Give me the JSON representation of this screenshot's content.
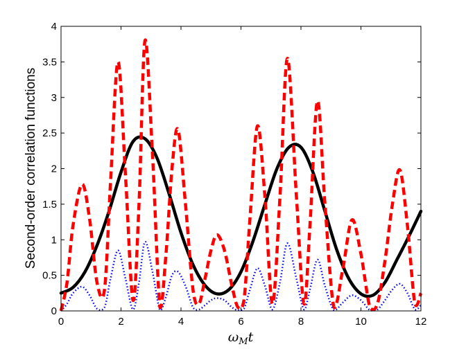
{
  "chart_data": {
    "type": "line",
    "xlabel": "ω_M t",
    "xlabel_main": "ω",
    "xlabel_sub": "M",
    "xlabel_tail": "t",
    "ylabel": "Second-order correlation functions",
    "xlim": [
      0,
      12
    ],
    "ylim": [
      0,
      4
    ],
    "xticks": [
      0,
      2,
      4,
      6,
      8,
      10,
      12
    ],
    "xtick_labels": [
      "0",
      "2",
      "4",
      "6",
      "8",
      "10",
      "12"
    ],
    "yticks": [
      0,
      0.5,
      1,
      1.5,
      2,
      2.5,
      3,
      3.5,
      4
    ],
    "ytick_labels": [
      "0",
      "0.5",
      "1",
      "1.5",
      "2",
      "2.5",
      "3",
      "3.5",
      "4"
    ],
    "grid": false,
    "series": [
      {
        "style": "solid",
        "color": "#000000",
        "x": [
          0,
          0.4,
          0.8,
          1.2,
          1.6,
          2.0,
          2.4,
          2.8,
          3.2,
          3.6,
          4.0,
          4.4,
          4.8,
          5.2,
          5.6,
          6.0,
          6.4,
          6.8,
          7.2,
          7.6,
          8.0,
          8.4,
          8.8,
          9.2,
          9.6,
          10.0,
          10.4,
          10.8,
          11.2,
          11.6,
          12.0
        ],
        "y": [
          0.25,
          0.33,
          0.55,
          0.92,
          1.4,
          1.95,
          2.38,
          2.42,
          2.15,
          1.65,
          1.1,
          0.65,
          0.36,
          0.24,
          0.3,
          0.55,
          0.98,
          1.5,
          2.0,
          2.3,
          2.3,
          1.95,
          1.4,
          0.85,
          0.45,
          0.24,
          0.22,
          0.4,
          0.72,
          1.05,
          1.4
        ]
      },
      {
        "style": "dashed",
        "color": "#ff0000",
        "x": [
          0.0,
          0.2,
          0.4,
          0.7,
          0.95,
          1.2,
          1.45,
          1.65,
          1.9,
          2.15,
          2.4,
          2.6,
          2.8,
          3.05,
          3.3,
          3.5,
          3.7,
          3.9,
          4.15,
          4.4,
          4.6,
          4.8,
          5.0,
          5.2,
          5.45,
          5.7,
          5.9,
          6.1,
          6.3,
          6.55,
          6.8,
          7.05,
          7.3,
          7.55,
          7.85,
          8.1,
          8.3,
          8.55,
          8.8,
          9.1,
          9.4,
          9.7,
          10.0,
          10.3,
          10.55,
          10.8,
          11.05,
          11.3,
          11.55,
          11.8,
          12.0
        ],
        "y": [
          0.0,
          0.4,
          1.2,
          1.78,
          1.3,
          0.4,
          0.3,
          1.8,
          3.5,
          1.9,
          0.15,
          1.5,
          3.8,
          2.2,
          0.05,
          0.8,
          2.0,
          2.55,
          1.5,
          0.3,
          0.1,
          0.45,
          0.85,
          1.07,
          0.85,
          0.35,
          0.05,
          0.15,
          1.3,
          2.6,
          1.6,
          0.1,
          1.6,
          3.55,
          1.6,
          0.1,
          1.2,
          2.95,
          1.5,
          0.05,
          0.6,
          1.28,
          0.8,
          0.05,
          0.1,
          0.7,
          1.5,
          1.98,
          1.2,
          0.1,
          0.25
        ]
      },
      {
        "style": "dotted",
        "color": "#0000ff",
        "x": [
          0.0,
          0.2,
          0.4,
          0.7,
          0.95,
          1.2,
          1.45,
          1.65,
          1.9,
          2.15,
          2.4,
          2.6,
          2.8,
          3.05,
          3.3,
          3.5,
          3.7,
          3.9,
          4.15,
          4.4,
          4.6,
          4.8,
          5.0,
          5.2,
          5.45,
          5.7,
          5.9,
          6.1,
          6.3,
          6.55,
          6.8,
          7.05,
          7.3,
          7.55,
          7.85,
          8.1,
          8.3,
          8.55,
          8.8,
          9.1,
          9.4,
          9.7,
          10.0,
          10.3,
          10.55,
          10.8,
          11.05,
          11.3,
          11.55,
          11.8,
          12.0
        ],
        "y": [
          0.0,
          0.1,
          0.25,
          0.34,
          0.22,
          0.03,
          0.05,
          0.45,
          0.85,
          0.45,
          0.02,
          0.4,
          0.97,
          0.55,
          0.01,
          0.2,
          0.5,
          0.55,
          0.35,
          0.05,
          0.02,
          0.08,
          0.15,
          0.18,
          0.15,
          0.05,
          0.01,
          0.03,
          0.3,
          0.6,
          0.35,
          0.02,
          0.4,
          0.95,
          0.45,
          0.02,
          0.3,
          0.72,
          0.35,
          0.01,
          0.12,
          0.22,
          0.15,
          0.01,
          0.02,
          0.15,
          0.3,
          0.38,
          0.25,
          0.02,
          0.08
        ]
      }
    ]
  }
}
